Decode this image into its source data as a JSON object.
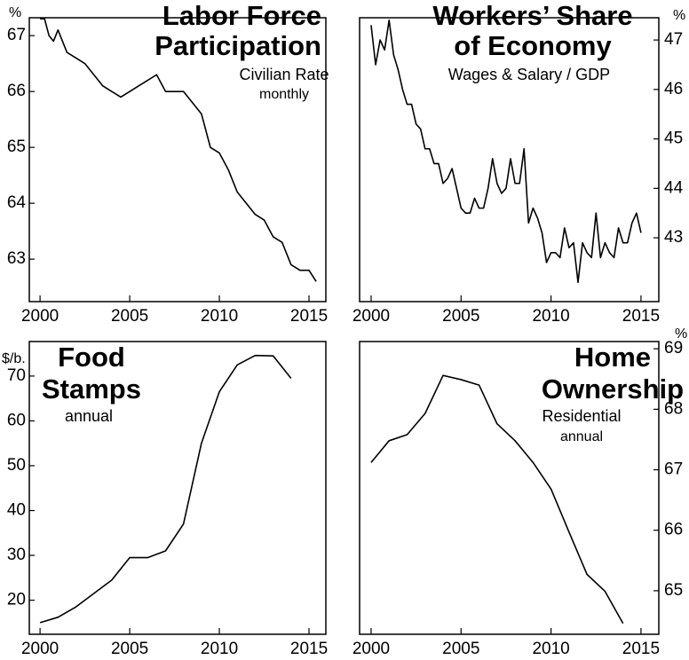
{
  "chart_data": [
    {
      "type": "line",
      "title": [
        "Labor Force",
        "Participation"
      ],
      "subtitle": [
        "Civilian Rate",
        "monthly"
      ],
      "unit": "%",
      "y_axis_side": "left",
      "color": "#000000",
      "x": [
        2000.0,
        2000.25,
        2000.5,
        2000.75,
        2001.0,
        2001.5,
        2002.0,
        2002.5,
        2003.0,
        2003.5,
        2004.0,
        2004.5,
        2005.0,
        2005.5,
        2006.0,
        2006.5,
        2007.0,
        2007.5,
        2008.0,
        2008.5,
        2009.0,
        2009.5,
        2010.0,
        2010.5,
        2011.0,
        2011.5,
        2012.0,
        2012.5,
        2013.0,
        2013.5,
        2014.0,
        2014.5,
        2015.0,
        2015.4
      ],
      "values": [
        67.3,
        67.3,
        67.0,
        66.9,
        67.1,
        66.7,
        66.6,
        66.5,
        66.3,
        66.1,
        66.0,
        65.9,
        66.0,
        66.1,
        66.2,
        66.3,
        66.0,
        66.0,
        66.0,
        65.8,
        65.6,
        65.0,
        64.9,
        64.6,
        64.2,
        64.0,
        63.8,
        63.7,
        63.4,
        63.3,
        62.9,
        62.8,
        62.8,
        62.6
      ],
      "xlim": [
        1999.4,
        2015.94
      ],
      "xticks": [
        2000,
        2005,
        2010,
        2015
      ],
      "ylim": [
        62.24,
        67.32
      ],
      "yticks": [
        63,
        64,
        65,
        66,
        67
      ]
    },
    {
      "type": "line",
      "title": [
        "Workers’ Share",
        "of Economy"
      ],
      "subtitle": [
        "Wages & Salary / GDP"
      ],
      "unit": "%",
      "y_axis_side": "right",
      "color": "#000000",
      "x": [
        2000.0,
        2000.25,
        2000.5,
        2000.75,
        2001.0,
        2001.25,
        2001.5,
        2001.75,
        2002.0,
        2002.25,
        2002.5,
        2002.75,
        2003.0,
        2003.25,
        2003.5,
        2003.75,
        2004.0,
        2004.25,
        2004.5,
        2004.75,
        2005.0,
        2005.25,
        2005.5,
        2005.75,
        2006.0,
        2006.25,
        2006.5,
        2006.75,
        2007.0,
        2007.25,
        2007.5,
        2007.75,
        2008.0,
        2008.25,
        2008.5,
        2008.75,
        2009.0,
        2009.25,
        2009.5,
        2009.75,
        2010.0,
        2010.25,
        2010.5,
        2010.75,
        2011.0,
        2011.25,
        2011.5,
        2011.75,
        2012.0,
        2012.25,
        2012.5,
        2012.75,
        2013.0,
        2013.25,
        2013.5,
        2013.75,
        2014.0,
        2014.25,
        2014.5,
        2014.75,
        2015.0
      ],
      "values": [
        47.3,
        46.5,
        47.0,
        46.8,
        47.4,
        46.7,
        46.4,
        46.0,
        45.7,
        45.7,
        45.3,
        45.2,
        44.8,
        44.8,
        44.5,
        44.5,
        44.1,
        44.2,
        44.4,
        44.0,
        43.6,
        43.5,
        43.5,
        43.8,
        43.6,
        43.6,
        44.0,
        44.6,
        44.1,
        43.9,
        44.0,
        44.6,
        44.1,
        44.1,
        44.8,
        43.3,
        43.6,
        43.4,
        43.1,
        42.5,
        42.7,
        42.7,
        42.6,
        43.2,
        42.8,
        42.9,
        42.1,
        42.9,
        42.7,
        42.6,
        43.5,
        42.6,
        42.9,
        42.7,
        42.6,
        43.2,
        42.9,
        42.9,
        43.3,
        43.5,
        43.1
      ],
      "xlim": [
        1999.36,
        2015.99
      ],
      "xticks": [
        2000,
        2005,
        2010,
        2015
      ],
      "ylim": [
        41.71,
        47.45
      ],
      "yticks": [
        43,
        44,
        45,
        46,
        47
      ]
    },
    {
      "type": "line",
      "title": [
        "Food",
        "Stamps"
      ],
      "subtitle": [
        "annual"
      ],
      "unit": "$/b.",
      "y_axis_side": "left",
      "color": "#000000",
      "x": [
        2000,
        2001,
        2002,
        2003,
        2004,
        2005,
        2006,
        2007,
        2008,
        2009,
        2010,
        2011,
        2012,
        2013,
        2014
      ],
      "values": [
        15,
        16.2,
        18.5,
        21.5,
        24.5,
        29.5,
        29.5,
        31,
        37,
        55,
        66.5,
        72.5,
        74.6,
        74.5,
        69.5
      ],
      "xlim": [
        1999.4,
        2015.94
      ],
      "xticks": [
        2000,
        2005,
        2010,
        2015
      ],
      "ylim": [
        12.4,
        77.7
      ],
      "yticks": [
        20,
        30,
        40,
        50,
        60,
        70
      ]
    },
    {
      "type": "line",
      "title": [
        "Home",
        "Ownership"
      ],
      "subtitle": [
        "Residential",
        "annual"
      ],
      "unit": "%",
      "y_axis_side": "right",
      "color": "#000000",
      "x": [
        2000,
        2001,
        2002,
        2003,
        2004,
        2005,
        2006,
        2007,
        2008,
        2009,
        2010,
        2011,
        2012,
        2013,
        2014
      ],
      "values": [
        67.12,
        67.48,
        67.58,
        67.93,
        68.56,
        68.49,
        68.4,
        67.76,
        67.48,
        67.12,
        66.68,
        65.97,
        65.27,
        64.99,
        64.46
      ],
      "xlim": [
        1999.36,
        2015.99
      ],
      "xticks": [
        2000,
        2005,
        2010,
        2015
      ],
      "ylim": [
        64.28,
        69.12
      ],
      "yticks": [
        65,
        66,
        67,
        68,
        69
      ]
    }
  ]
}
